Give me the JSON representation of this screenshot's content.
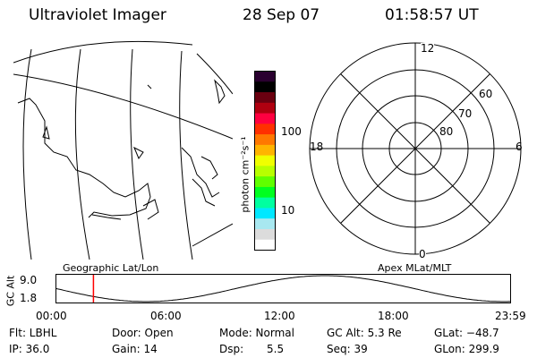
{
  "header": {
    "title": "Ultraviolet Imager",
    "date": "28 Sep 07",
    "time": "01:58:57 UT"
  },
  "colorbar": {
    "unit_label": "photon cm⁻²s⁻¹",
    "ticks": [
      "100",
      "10"
    ],
    "colors": [
      "#2a0030",
      "#000000",
      "#6a0010",
      "#b00010",
      "#ff0040",
      "#ff3000",
      "#ff7800",
      "#ffb400",
      "#f0ff00",
      "#b8ff00",
      "#60ff00",
      "#00ff20",
      "#00ffa0",
      "#00e8ff",
      "#a8e8f0",
      "#dcdcdc",
      "#ffffff"
    ]
  },
  "polar_plot": {
    "mlt_labels": {
      "top": "12",
      "left": "18",
      "right": "6",
      "bottom": "0"
    },
    "lat_labels": [
      "60",
      "70",
      "80"
    ]
  },
  "orbit_panel": {
    "left_label": "Geographic Lat/Lon",
    "right_label": "Apex MLat/MLT",
    "y_axis_label": "GC Alt",
    "y_ticks": [
      "9.0",
      "1.8"
    ],
    "x_ticks": [
      "00:00",
      "06:00",
      "12:00",
      "18:00",
      "23:59"
    ],
    "current_time_marker_hours": 1.98,
    "marker_color": "#ff0000"
  },
  "status": {
    "flt": "Flt: LBHL",
    "door": "Door: Open",
    "mode": "Mode: Normal",
    "gc_alt": "GC Alt: 5.3 Re",
    "glat": "GLat: −48.7",
    "ip": "IP: 36.0",
    "gain": "Gain: 14",
    "dsp": "Dsp:",
    "dsp_value": "5.5",
    "seq": "Seq: 39",
    "glon": "GLon: 299.9"
  }
}
